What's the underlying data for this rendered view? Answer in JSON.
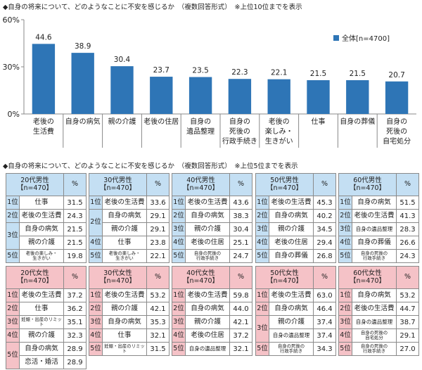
{
  "chart_title": "◆自身の将来について、どのようなことに不安を感じるか　（複数回答形式）　※上位10位までを表示",
  "table_title": "◆自身の将来について、どのようなことに不安を感じるか　（複数回答形式）　※上位5位までを表示",
  "chart_data": {
    "type": "bar",
    "categories": [
      "老後の\n生活費",
      "自身の病気",
      "親の介護",
      "老後の住居",
      "自身の\n遺品整理",
      "自身の\n死後の\n行政手続き",
      "老後の\n楽しみ・\n生きがい",
      "仕事",
      "自身の葬儀",
      "自身の\n死後の\n自宅処分"
    ],
    "series": [
      {
        "name": "全体[n=4700]",
        "values": [
          44.6,
          38.9,
          30.4,
          23.7,
          23.5,
          22.3,
          22.1,
          21.5,
          21.5,
          20.7
        ]
      }
    ],
    "ylim": [
      0,
      60
    ],
    "yticks": [
      "0%",
      "30%",
      "60%"
    ],
    "bar_color": "#2e75b6",
    "grid": false,
    "legend": "top-right"
  },
  "tables": [
    {
      "group": "m",
      "title": "20代男性",
      "n": "【n=470】",
      "pct": "%",
      "rows": [
        {
          "rank": "1位",
          "item": "仕事",
          "value": "31.5"
        },
        {
          "rank": "2位",
          "item": "老後の生活費",
          "value": "24.3"
        },
        {
          "rank": "3位",
          "item": "自身の病気",
          "value": "21.5"
        },
        {
          "rank": "",
          "item": "親の介護",
          "value": "21.5"
        },
        {
          "rank": "5位",
          "item": "老後の楽しみ・\n生きがい",
          "value": "19.8"
        }
      ]
    },
    {
      "group": "m",
      "title": "30代男性",
      "n": "【n=470】",
      "pct": "%",
      "rows": [
        {
          "rank": "1位",
          "item": "老後の生活費",
          "value": "33.6"
        },
        {
          "rank": "2位",
          "item": "自身の病気",
          "value": "29.1"
        },
        {
          "rank": "",
          "item": "親の介護",
          "value": "29.1"
        },
        {
          "rank": "4位",
          "item": "仕事",
          "value": "23.8"
        },
        {
          "rank": "5位",
          "item": "老後の楽しみ・\n生きがい",
          "value": "22.1"
        }
      ]
    },
    {
      "group": "m",
      "title": "40代男性",
      "n": "【n=470】",
      "pct": "%",
      "rows": [
        {
          "rank": "1位",
          "item": "老後の生活費",
          "value": "43.6"
        },
        {
          "rank": "2位",
          "item": "自身の病気",
          "value": "38.3"
        },
        {
          "rank": "3位",
          "item": "親の介護",
          "value": "30.4"
        },
        {
          "rank": "4位",
          "item": "老後の住居",
          "value": "25.1"
        },
        {
          "rank": "5位",
          "item": "自身の死後の\n行政手続き",
          "value": "24.7"
        }
      ]
    },
    {
      "group": "m",
      "title": "50代男性",
      "n": "【n=470】",
      "pct": "%",
      "rows": [
        {
          "rank": "1位",
          "item": "老後の生活費",
          "value": "45.3"
        },
        {
          "rank": "2位",
          "item": "自身の病気",
          "value": "40.2"
        },
        {
          "rank": "3位",
          "item": "親の介護",
          "value": "34.5"
        },
        {
          "rank": "4位",
          "item": "老後の住居",
          "value": "29.4"
        },
        {
          "rank": "5位",
          "item": "自身の葬儀",
          "value": "26.8"
        }
      ]
    },
    {
      "group": "m",
      "title": "60代男性",
      "n": "【n=470】",
      "pct": "%",
      "rows": [
        {
          "rank": "1位",
          "item": "自身の病気",
          "value": "51.5"
        },
        {
          "rank": "2位",
          "item": "老後の生活費",
          "value": "41.3"
        },
        {
          "rank": "3位",
          "item": "自身の遺品整理",
          "value": "28.3"
        },
        {
          "rank": "4位",
          "item": "自身の葬儀",
          "value": "26.6"
        },
        {
          "rank": "5位",
          "item": "自身の死後の\n行政手続き",
          "value": "24.3"
        }
      ]
    },
    {
      "group": "f",
      "title": "20代女性",
      "n": "【n=470】",
      "pct": "%",
      "rows": [
        {
          "rank": "1位",
          "item": "老後の生活費",
          "value": "37.2"
        },
        {
          "rank": "2位",
          "item": "仕事",
          "value": "36.2"
        },
        {
          "rank": "3位",
          "item": "妊娠・出産のリミット",
          "value": "35.1"
        },
        {
          "rank": "4位",
          "item": "親の介護",
          "value": "32.3"
        },
        {
          "rank": "5位",
          "item": "自身の病気",
          "value": "28.9"
        },
        {
          "rank": "",
          "item": "恋活・婚活",
          "value": "28.9"
        }
      ]
    },
    {
      "group": "f",
      "title": "30代女性",
      "n": "【n=470】",
      "pct": "%",
      "rows": [
        {
          "rank": "1位",
          "item": "老後の生活費",
          "value": "53.2"
        },
        {
          "rank": "2位",
          "item": "親の介護",
          "value": "42.1"
        },
        {
          "rank": "3位",
          "item": "自身の病気",
          "value": "35.3"
        },
        {
          "rank": "4位",
          "item": "仕事",
          "value": "32.1"
        },
        {
          "rank": "5位",
          "item": "妊娠・出産のリミット",
          "value": "31.5"
        }
      ]
    },
    {
      "group": "f",
      "title": "40代女性",
      "n": "【n=470】",
      "pct": "%",
      "rows": [
        {
          "rank": "1位",
          "item": "老後の生活費",
          "value": "59.8"
        },
        {
          "rank": "2位",
          "item": "自身の病気",
          "value": "44.0"
        },
        {
          "rank": "3位",
          "item": "親の介護",
          "value": "42.1"
        },
        {
          "rank": "4位",
          "item": "老後の住居",
          "value": "37.2"
        },
        {
          "rank": "5位",
          "item": "自身の遺品整理",
          "value": "32.1"
        }
      ]
    },
    {
      "group": "f",
      "title": "50代女性",
      "n": "【n=470】",
      "pct": "%",
      "rows": [
        {
          "rank": "1位",
          "item": "老後の生活費",
          "value": "63.0"
        },
        {
          "rank": "2位",
          "item": "自身の病気",
          "value": "46.4"
        },
        {
          "rank": "3位",
          "item": "親の介護",
          "value": "37.4"
        },
        {
          "rank": "",
          "item": "自身の遺品整理",
          "value": "37.4"
        },
        {
          "rank": "5位",
          "item": "自身の死後の\n行政手続き",
          "value": "34.3"
        }
      ]
    },
    {
      "group": "f",
      "title": "60代女性",
      "n": "【n=470】",
      "pct": "%",
      "rows": [
        {
          "rank": "1位",
          "item": "自身の病気",
          "value": "53.2"
        },
        {
          "rank": "2位",
          "item": "老後の生活費",
          "value": "44.7"
        },
        {
          "rank": "3位",
          "item": "自身の遺品整理",
          "value": "38.7"
        },
        {
          "rank": "4位",
          "item": "自身の死後の\n自宅処分",
          "value": "29.1"
        },
        {
          "rank": "5位",
          "item": "自身の死後の\n行政手続き",
          "value": "27.0"
        }
      ]
    }
  ]
}
